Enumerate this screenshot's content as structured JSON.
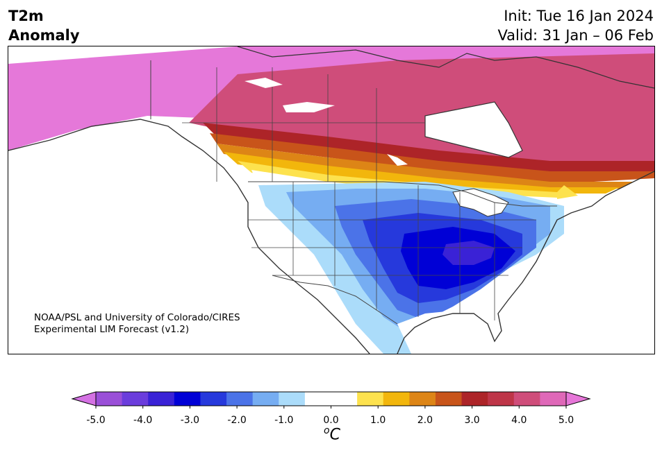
{
  "title": {
    "left_line1": "T2m",
    "left_line2": "Anomaly",
    "init": "Init: Tue 16 Jan 2024",
    "valid": "Valid: 31 Jan – 06 Feb"
  },
  "credit": {
    "line1": "NOAA/PSL and University of Colorado/CIRES",
    "line2": "Experimental LIM Forecast (v1.2)"
  },
  "colorbar": {
    "unit_prefix": "o",
    "unit": "C",
    "tick_labels": [
      "-5.0",
      "-4.0",
      "-3.0",
      "-2.0",
      "-1.0",
      "0.0",
      "1.0",
      "2.0",
      "3.0",
      "4.0",
      "5.0"
    ],
    "colors": [
      "#9a4fd8",
      "#6b3ddc",
      "#3a22d6",
      "#0000d6",
      "#2639dc",
      "#4b73e8",
      "#76adf2",
      "#abdcfa",
      "#ffffff",
      "#ffffff",
      "#fde24e",
      "#f2b60c",
      "#dd8516",
      "#c8541a",
      "#ad2428",
      "#be3548",
      "#cf4d7a",
      "#df68b8"
    ],
    "extend_low_color": "#d471e3",
    "extend_high_color": "#e676d8"
  },
  "map": {
    "region": "North America",
    "colors": {
      "strong_positive": "#e578d9",
      "positive_4": "#cf4d7a",
      "positive_3": "#ad2428",
      "positive_2": "#dd8516",
      "positive_1": "#f2b60c",
      "positive_05": "#fde24e",
      "neutral": "#ffffff",
      "negative_05": "#abdcfa",
      "negative_1": "#76adf2",
      "negative_15": "#4b73e8",
      "negative_2": "#2639dc",
      "negative_25": "#0000d6",
      "negative_3": "#3a22d6",
      "coastline": "#333333"
    }
  }
}
